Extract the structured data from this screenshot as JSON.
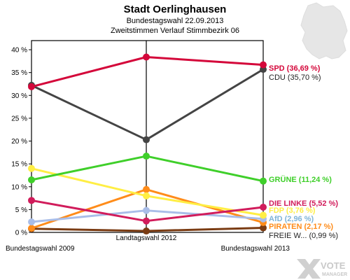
{
  "chart_data": {
    "type": "line",
    "title": "Stadt Oerlinghausen",
    "subtitles": [
      "Bundestagswahl 22.09.2013",
      "Zweitstimmen Verlauf Stimmbezirk 06"
    ],
    "categories": [
      "Bundestagswahl 2009",
      "Landtagswahl 2012",
      "Bundestagswahl 2013"
    ],
    "y_ticks": [
      "0 %",
      "5 %",
      "10 %",
      "15 %",
      "20 %",
      "25 %",
      "30 %",
      "35 %",
      "40 %"
    ],
    "ylim": [
      0,
      42
    ],
    "grid": false,
    "series": [
      {
        "name": "SPD",
        "label": "SPD (36,69 %)",
        "values": [
          31.9,
          38.4,
          36.69
        ],
        "color": "#d4073a",
        "label_color": "#d4073a"
      },
      {
        "name": "CDU",
        "label": "CDU (35,70 %)",
        "values": [
          32.2,
          20.3,
          35.7
        ],
        "color": "#444444",
        "label_color": "#222222"
      },
      {
        "name": "GRÜNE",
        "label": "GRÜNE (11,24 %)",
        "values": [
          11.5,
          16.7,
          11.24
        ],
        "color": "#3fcf2a",
        "label_color": "#3fcf2a"
      },
      {
        "name": "DIE LINKE",
        "label": "DIE LINKE (5,52 %)",
        "values": [
          7.0,
          2.5,
          5.52
        ],
        "color": "#d11c5b",
        "label_color": "#d11c5b"
      },
      {
        "name": "FDP",
        "label": "FDP (3,76 %)",
        "values": [
          14.0,
          8.0,
          3.76
        ],
        "color": "#ffee44",
        "label_color": "#ffee44"
      },
      {
        "name": "AfD",
        "label": "AfD (2,96 %)",
        "values": [
          2.3,
          4.8,
          2.96
        ],
        "color": "#a9bde8",
        "label_color": "#7fb4d8"
      },
      {
        "name": "PIRATEN",
        "label": "PIRATEN (2,17 %)",
        "values": [
          0.9,
          9.4,
          2.17
        ],
        "color": "#ff8c1a",
        "label_color": "#ff8c1a"
      },
      {
        "name": "FREIE WÄHLER",
        "label": "FREIE W... (0,99 %)",
        "values": [
          0.8,
          0.3,
          0.99
        ],
        "color": "#7a3b12",
        "label_color": "#222222"
      }
    ]
  },
  "logo": {
    "top": "VOTE",
    "bottom": "MANAGER"
  }
}
